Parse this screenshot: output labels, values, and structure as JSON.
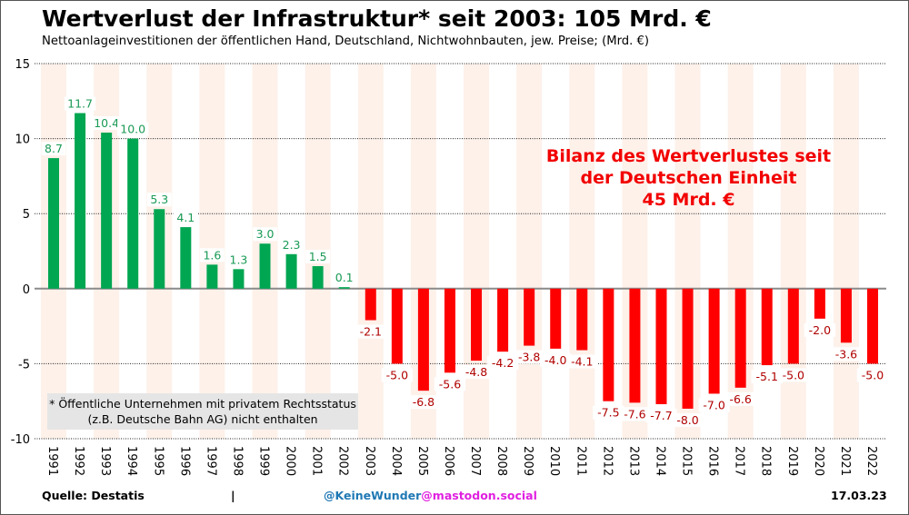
{
  "header": {
    "title": "Wertverlust der Infrastruktur* seit 2003: 105 Mrd. €",
    "subtitle": "Nettoanlageinvestitionen der öffentlichen Hand, Deutschland, Nichtwohnbauten, jew. Preise; (Mrd. €)"
  },
  "annotation": {
    "line1": "Bilanz des Wertverlustes seit",
    "line2": "der Deutschen Einheit",
    "line3": "45 Mrd. €"
  },
  "note": {
    "line1": "* Öffentliche Unternehmen mit privatem Rechtsstatus",
    "line2": "(z.B. Deutsche Bahn AG) nicht enthalten"
  },
  "footer": {
    "source": "Quelle: Destatis",
    "separator": "|",
    "handle_user": "@KeineWunder",
    "handle_server": "@mastodon.social",
    "date": "17.03.23"
  },
  "colors": {
    "positive": "#00a651",
    "negative": "#ff0000",
    "positive_label": "#1a9a55",
    "negative_label": "#b00000",
    "stripe": "#fdf1ea",
    "handle_user": "#1f78b4",
    "handle_server": "#e020e0"
  },
  "chart_data": {
    "type": "bar",
    "title": "Wertverlust der Infrastruktur* seit 2003: 105 Mrd. €",
    "subtitle": "Nettoanlageinvestitionen der öffentlichen Hand, Deutschland, Nichtwohnbauten, jew. Preise; (Mrd. €)",
    "xlabel": "",
    "ylabel": "Mrd. €",
    "ylim": [
      -10,
      15
    ],
    "yticks": [
      15,
      10,
      5,
      0,
      -5,
      -10
    ],
    "grid": true,
    "categories": [
      "1991",
      "1992",
      "1993",
      "1994",
      "1995",
      "1996",
      "1997",
      "1998",
      "1999",
      "2000",
      "2001",
      "2002",
      "2003",
      "2004",
      "2005",
      "2006",
      "2007",
      "2008",
      "2009",
      "2010",
      "2011",
      "2012",
      "2013",
      "2014",
      "2015",
      "2016",
      "2017",
      "2018",
      "2019",
      "2020",
      "2021",
      "2022"
    ],
    "values": [
      8.7,
      11.7,
      10.4,
      10.0,
      5.3,
      4.1,
      1.6,
      1.3,
      3.0,
      2.3,
      1.5,
      0.1,
      -2.1,
      -5.0,
      -6.8,
      -5.6,
      -4.8,
      -4.2,
      -3.8,
      -4.0,
      -4.1,
      -7.5,
      -7.6,
      -7.7,
      -8.0,
      -7.0,
      -6.6,
      -5.1,
      -5.0,
      -2.0,
      -3.6,
      -5.0
    ],
    "labels": [
      "8.7",
      "11.7",
      "10.4",
      "10.0",
      "5.3",
      "4.1",
      "1.6",
      "1.3",
      "3.0",
      "2.3",
      "1.5",
      "0.1",
      "-2.1",
      "-5.0",
      "-6.8",
      "-5.6",
      "-4.8",
      "-4.2",
      "-3.8",
      "-4.0",
      "-4.1",
      "-7.5",
      "-7.6",
      "-7.7",
      "-8.0",
      "-7.0",
      "-6.6",
      "-5.1",
      "-5.0",
      "-2.0",
      "-3.6",
      "-5.0"
    ],
    "annotation": "Bilanz des Wertverlustes seit der Deutschen Einheit 45 Mrd. €"
  }
}
